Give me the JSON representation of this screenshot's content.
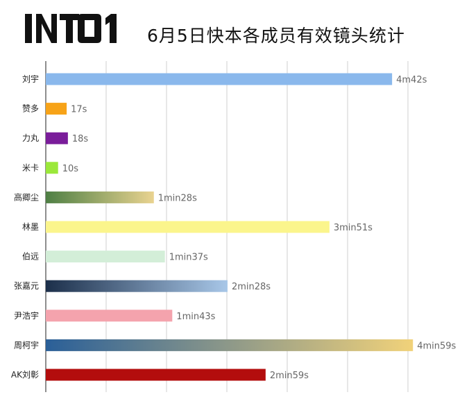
{
  "chart_data": {
    "type": "bar",
    "orientation": "horizontal",
    "logo_text": "INTO1",
    "title": "6月5日快本各成员有效镜头统计",
    "xlabel": "",
    "ylabel": "",
    "grid": true,
    "categories": [
      "刘宇",
      "赞多",
      "力丸",
      "米卡",
      "高卿尘",
      "林墨",
      "伯远",
      "张嘉元",
      "尹浩宇",
      "周柯宇",
      "AK刘彰"
    ],
    "values": [
      282,
      17,
      18,
      10,
      88,
      231,
      97,
      148,
      103,
      299,
      179
    ],
    "value_labels": [
      "4m42s",
      "17s",
      "18s",
      "10s",
      "1min28s",
      "3min51s",
      "1min37s",
      "2min28s",
      "1min43s",
      "4min59s",
      "2min59s"
    ],
    "colors": [
      [
        "#8ab8ec",
        "#8ab8ec"
      ],
      [
        "#f7a318",
        "#f7a318"
      ],
      [
        "#7a1d9a",
        "#7a1d9a"
      ],
      [
        "#9be83a",
        "#9be83a"
      ],
      [
        "#4e7f44",
        "#e9d390"
      ],
      [
        "#fbf58c",
        "#fbf58c"
      ],
      [
        "#d3eed8",
        "#d3eed8"
      ],
      [
        "#1c2f4a",
        "#a8c7e8"
      ],
      [
        "#f4a3ad",
        "#f4a3ad"
      ],
      [
        "#2a5f98",
        "#f1d27a"
      ],
      [
        "#b30d0d",
        "#b30d0d"
      ]
    ]
  }
}
